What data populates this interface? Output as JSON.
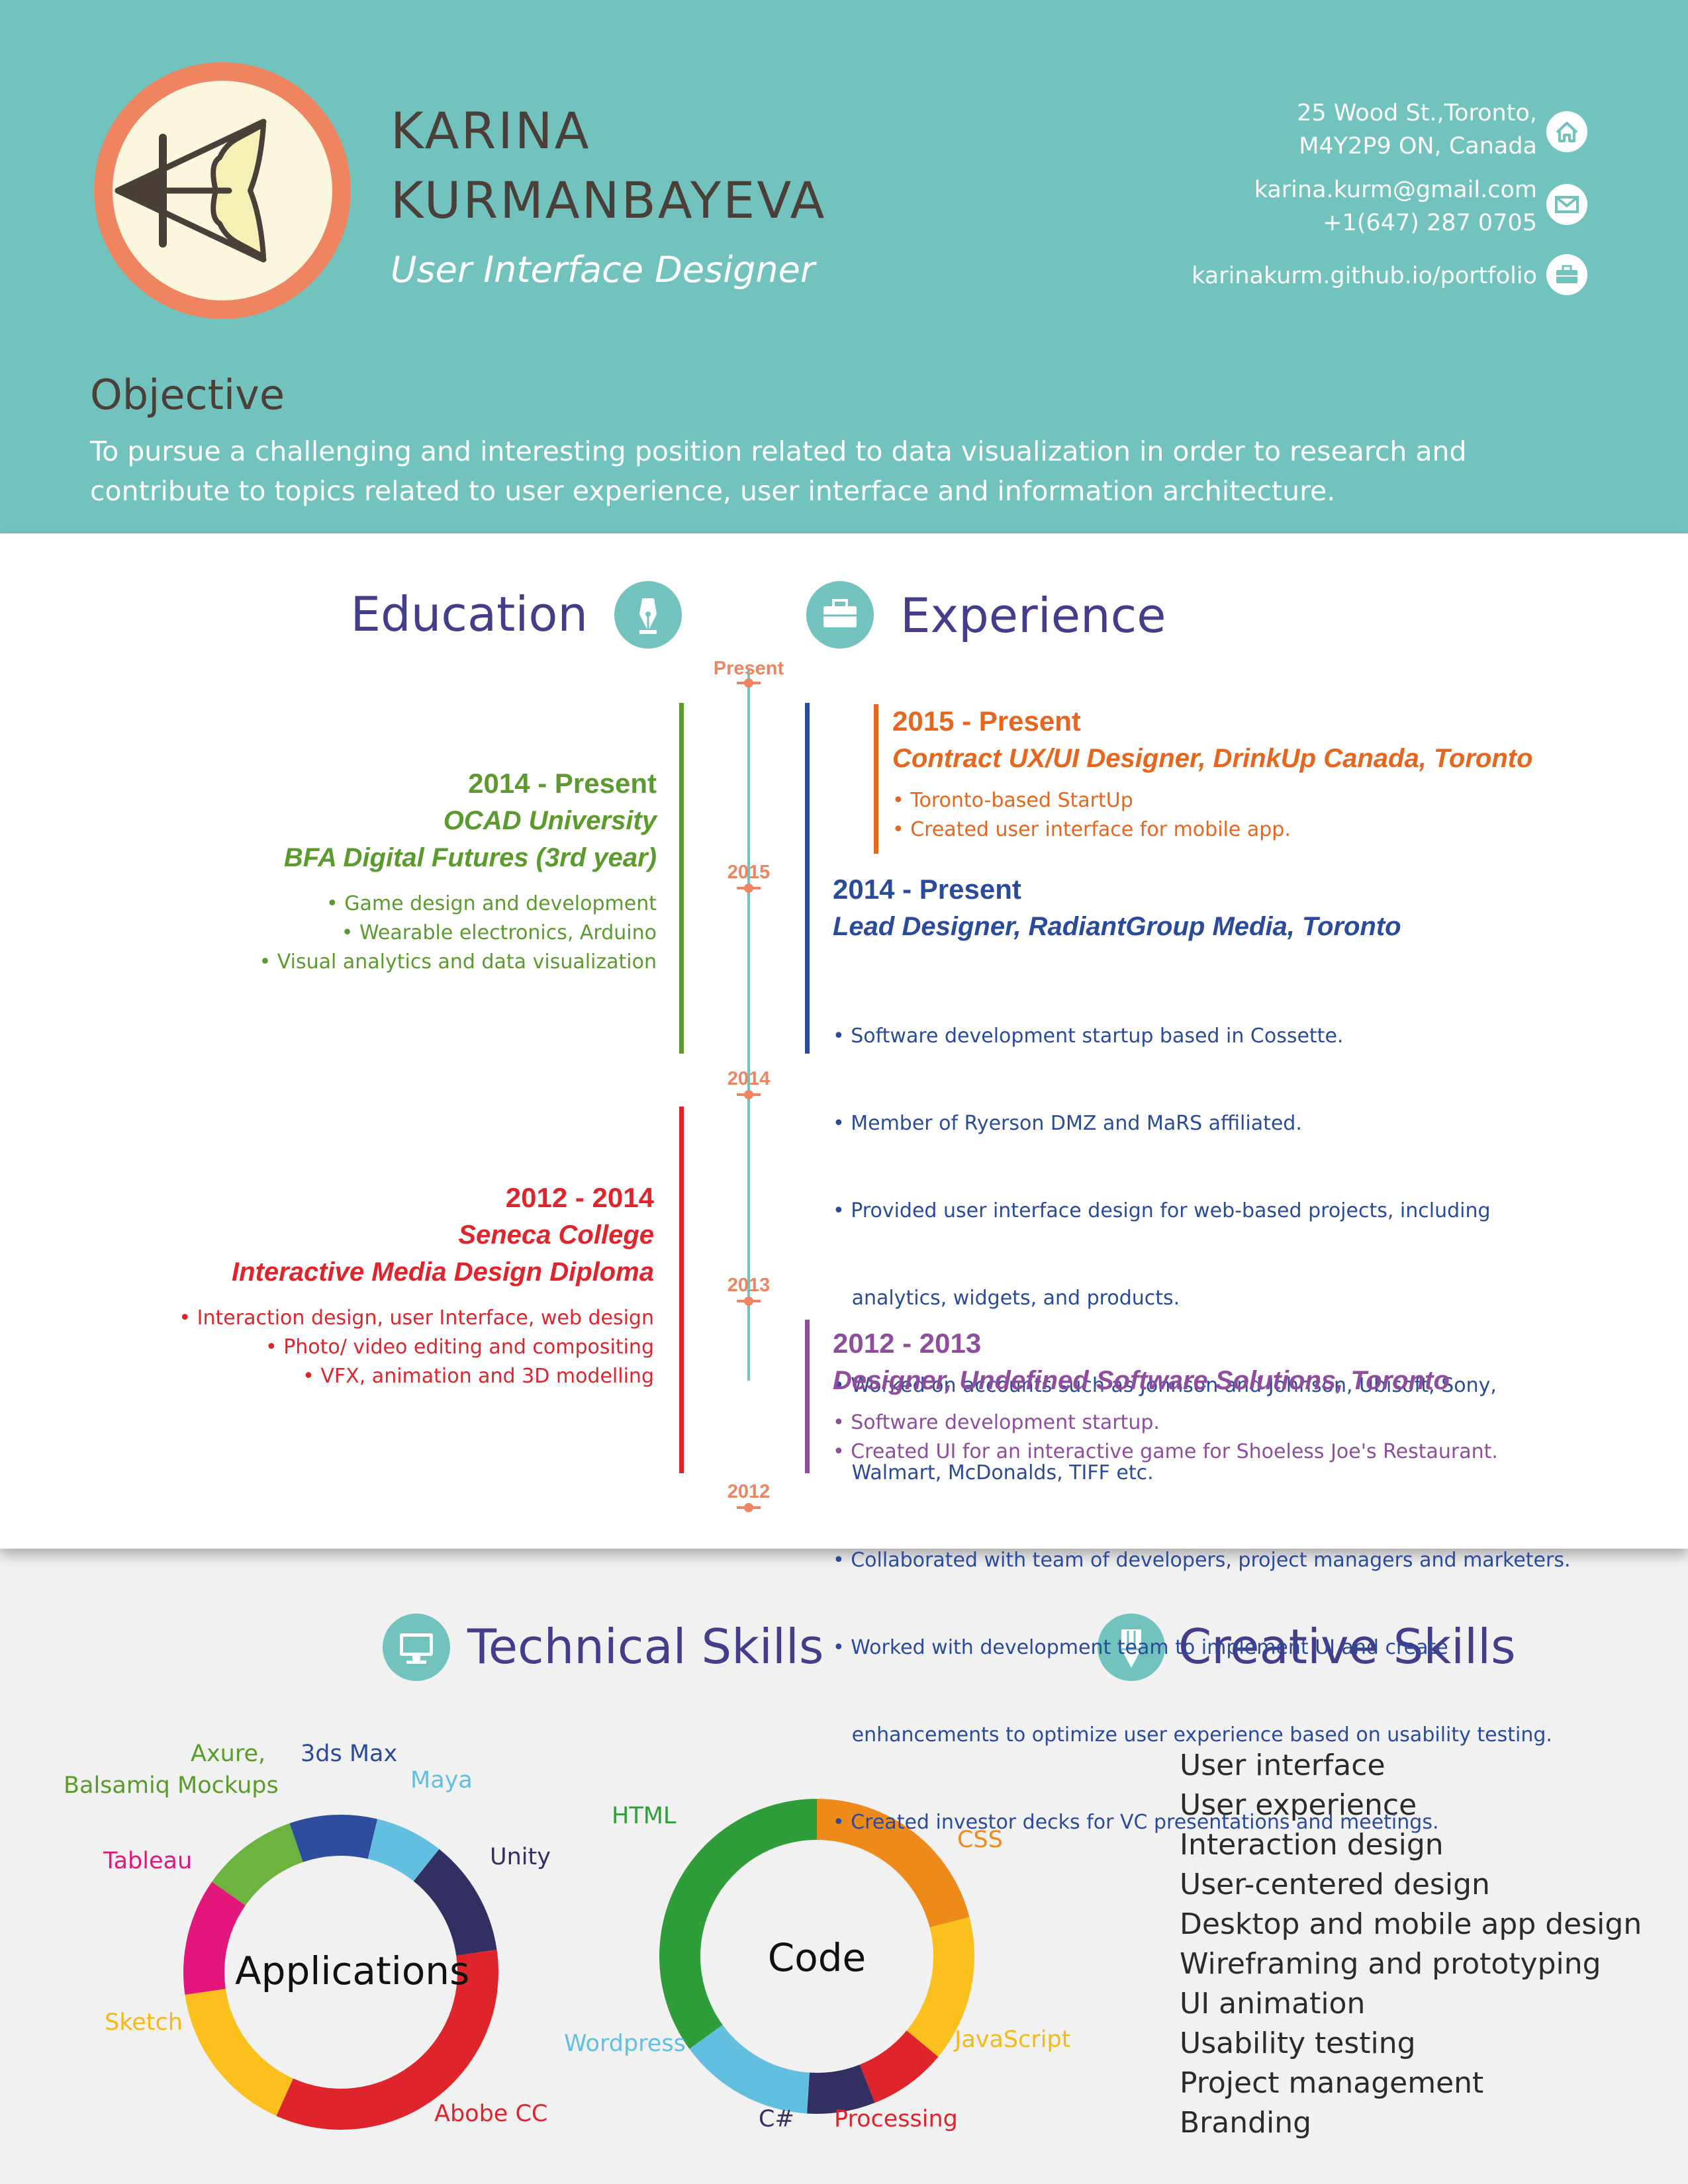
{
  "header": {
    "first_name": "KARINA",
    "last_name": "KURMANBAYEVA",
    "role": "User Interface Designer",
    "address_line1": "25 Wood St.,Toronto,",
    "address_line2": "M4Y2P9 ON, Canada",
    "email": "karina.kurm@gmail.com",
    "phone": "+1(647) 287 0705",
    "website": "karinakurm.github.io/portfolio",
    "icons": [
      "home-icon",
      "mail-icon",
      "briefcase-icon"
    ]
  },
  "objective": {
    "title": "Objective",
    "text_line1": "To pursue a challenging and interesting position related to data visualization in order to research and",
    "text_line2": "contribute to topics related to user experience, user interface and information architecture."
  },
  "colors": {
    "teal": "#72c3be",
    "coral": "#ee8560",
    "navy_title": "#433d8b",
    "green": "#5b9a2c",
    "red": "#e0242b",
    "orange": "#e8651e",
    "blue": "#2a4a9b",
    "purple": "#8e4d9d"
  },
  "sections": {
    "education": "Education",
    "experience": "Experience",
    "technical": "Technical Skills",
    "creative": "Creative Skills"
  },
  "timeline": {
    "present": "Present",
    "y2015": "2015",
    "y2014": "2014",
    "y2013": "2013",
    "y2012": "2012"
  },
  "education": [
    {
      "years": "2014 - Present",
      "school": "OCAD University",
      "degree": "BFA Digital Futures (3rd year)",
      "bullets": [
        "• Game design and development",
        "• Wearable electronics,  Arduino",
        "• Visual analytics and data visualization"
      ]
    },
    {
      "years": "2012 - 2014",
      "school": "Seneca College",
      "degree": "Interactive Media Design Diploma",
      "bullets": [
        "• Interaction design, user Interface, web design",
        "• Photo/ video editing and compositing",
        "• VFX,  animation and 3D modelling"
      ]
    }
  ],
  "experience": [
    {
      "years": "2015 - Present",
      "title": "Contract UX/UI Designer, DrinkUp Canada, Toronto",
      "bullets": [
        "• Toronto-based StartUp",
        "• Created user interface for mobile app."
      ]
    },
    {
      "years": "2014 - Present",
      "title": "Lead Designer, RadiantGroup Media, Toronto",
      "bullets": [
        "• Software development startup based in Cossette.",
        "• Member of Ryerson DMZ and MaRS affiliated.",
        "• Provided user interface design for web-based projects, including",
        "   analytics, widgets, and products.",
        "• Worked on accounts such as Johnson and Johnson, Ubisoft, Sony,",
        "   Walmart, McDonalds, TIFF etc.",
        "• Collaborated with team of developers, project managers and marketers.",
        "• Worked with development team to implement UI and create",
        "   enhancements to optimize user experience based on usability testing.",
        "• Created investor decks for VC presentations and meetings."
      ]
    },
    {
      "years": "2012 - 2013",
      "title": "Designer, Undefined Software Solutions, Toronto",
      "bullets": [
        "• Software development startup.",
        "• Created UI for an interactive game for Shoeless Joe's Restaurant."
      ]
    }
  ],
  "applications": {
    "center": "Applications",
    "segments": [
      {
        "name": "Axure,",
        "name2": "Balsamiq Mockups",
        "color": "#6cb33f",
        "share": 0.1
      },
      {
        "name": "3ds Max",
        "color": "#2f4d9e",
        "share": 0.09
      },
      {
        "name": "Maya",
        "color": "#62bfe0",
        "share": 0.07
      },
      {
        "name": "Unity",
        "color": "#322f63",
        "share": 0.12
      },
      {
        "name": "Abobe CC",
        "color": "#e0242b",
        "share": 0.34
      },
      {
        "name": "Sketch",
        "color": "#fbbf1e",
        "share": 0.16
      },
      {
        "name": "Tableau",
        "color": "#e3177b",
        "share": 0.12
      }
    ]
  },
  "code": {
    "center": "Code",
    "segments": [
      {
        "name": "CSS",
        "color": "#ee8a1a",
        "share": 0.21
      },
      {
        "name": "JavaScript",
        "color": "#fbbf1e",
        "share": 0.15
      },
      {
        "name": "Processing",
        "color": "#e0242b",
        "share": 0.08
      },
      {
        "name": "C#",
        "color": "#322f63",
        "share": 0.07
      },
      {
        "name": "Wordpress",
        "color": "#62bfe0",
        "share": 0.14
      },
      {
        "name": "HTML",
        "color": "#2f9e3a",
        "share": 0.35
      }
    ]
  },
  "creative_skills": [
    "User interface",
    "User experience",
    "Interaction design",
    "User-centered design",
    "Desktop and mobile app design",
    "Wireframing and prototyping",
    "UI animation",
    "Usability testing",
    "Project management",
    "Branding"
  ]
}
